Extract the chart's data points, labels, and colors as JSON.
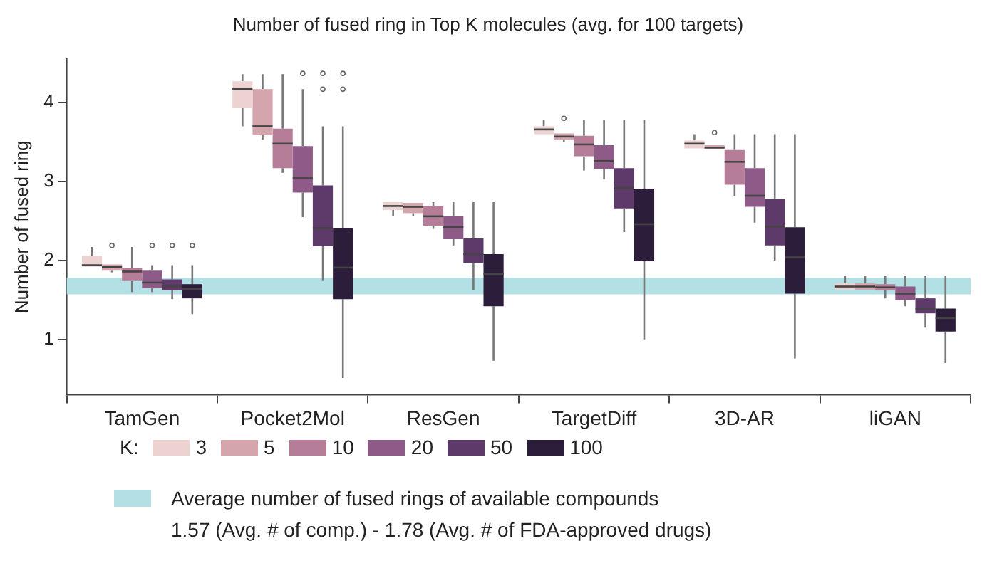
{
  "chart_data": {
    "type": "box",
    "title": "Number of fused ring in Top K molecules (avg. for 100 targets)",
    "ylabel": "Number of fused ring",
    "legend_title": "K:",
    "legend": "bottom",
    "grid": false,
    "categories": [
      "TamGen",
      "Pocket2Mol",
      "ResGen",
      "TargetDiff",
      "3D-AR",
      "liGAN"
    ],
    "ylim": [
      0.3,
      4.55
    ],
    "yticks": [
      1,
      2,
      3,
      4
    ],
    "bands": [
      {
        "axis": "y",
        "from": 1.57,
        "to": 1.78,
        "label": "Average number of fused rings of available compounds",
        "color": "#b2e0e5"
      }
    ],
    "annotations": [
      "1.57 (Avg. # of comp.) - 1.78 (Avg. # of FDA-approved drugs)"
    ],
    "series": [
      {
        "name": "3",
        "color": "#ecd3d1",
        "boxes": [
          {
            "low": 1.92,
            "q1": 1.92,
            "median": 1.94,
            "q3": 2.06,
            "high": 2.17
          },
          {
            "low": 3.7,
            "q1": 3.93,
            "median": 4.17,
            "q3": 4.27,
            "high": 4.36
          },
          {
            "low": 2.56,
            "q1": 2.64,
            "median": 2.69,
            "q3": 2.74,
            "high": 2.74
          },
          {
            "low": 3.6,
            "q1": 3.6,
            "median": 3.66,
            "q3": 3.7,
            "high": 3.78
          },
          {
            "low": 3.42,
            "q1": 3.42,
            "median": 3.48,
            "q3": 3.52,
            "high": 3.6
          },
          {
            "low": 1.63,
            "q1": 1.63,
            "median": 1.67,
            "q3": 1.71,
            "high": 1.8
          }
        ]
      },
      {
        "name": "5",
        "color": "#d4a5ad",
        "boxes": [
          {
            "low": 1.85,
            "q1": 1.87,
            "median": 1.92,
            "q3": 1.95,
            "high": 1.95,
            "outliers": [
              2.19
            ]
          },
          {
            "low": 3.53,
            "q1": 3.59,
            "median": 3.7,
            "q3": 4.17,
            "high": 4.36
          },
          {
            "low": 2.56,
            "q1": 2.6,
            "median": 2.68,
            "q3": 2.73,
            "high": 2.73
          },
          {
            "low": 3.5,
            "q1": 3.53,
            "median": 3.57,
            "q3": 3.61,
            "high": 3.61,
            "outliers": [
              3.8
            ]
          },
          {
            "low": 3.41,
            "q1": 3.41,
            "median": 3.43,
            "q3": 3.46,
            "high": 3.46,
            "outliers": [
              3.62
            ]
          },
          {
            "low": 1.63,
            "q1": 1.63,
            "median": 1.67,
            "q3": 1.71,
            "high": 1.8
          }
        ]
      },
      {
        "name": "10",
        "color": "#b67d99",
        "boxes": [
          {
            "low": 1.6,
            "q1": 1.74,
            "median": 1.86,
            "q3": 1.91,
            "high": 2.17
          },
          {
            "low": 3.11,
            "q1": 3.17,
            "median": 3.48,
            "q3": 3.67,
            "high": 4.36
          },
          {
            "low": 2.4,
            "q1": 2.44,
            "median": 2.56,
            "q3": 2.69,
            "high": 2.74
          },
          {
            "low": 3.14,
            "q1": 3.32,
            "median": 3.47,
            "q3": 3.58,
            "high": 3.78
          },
          {
            "low": 2.81,
            "q1": 2.96,
            "median": 3.25,
            "q3": 3.4,
            "high": 3.6
          },
          {
            "low": 1.52,
            "q1": 1.62,
            "median": 1.66,
            "q3": 1.7,
            "high": 1.8
          }
        ]
      },
      {
        "name": "20",
        "color": "#8e5a87",
        "boxes": [
          {
            "low": 1.6,
            "q1": 1.65,
            "median": 1.72,
            "q3": 1.87,
            "high": 1.94,
            "outliers": [
              2.19
            ]
          },
          {
            "low": 2.55,
            "q1": 2.86,
            "median": 3.05,
            "q3": 3.45,
            "high": 4.17,
            "outliers": [
              4.37
            ]
          },
          {
            "low": 2.19,
            "q1": 2.27,
            "median": 2.42,
            "q3": 2.56,
            "high": 2.74
          },
          {
            "low": 3.03,
            "q1": 3.16,
            "median": 3.26,
            "q3": 3.46,
            "high": 3.78
          },
          {
            "low": 2.48,
            "q1": 2.68,
            "median": 2.82,
            "q3": 3.17,
            "high": 3.6
          },
          {
            "low": 1.42,
            "q1": 1.5,
            "median": 1.58,
            "q3": 1.67,
            "high": 1.8
          }
        ]
      },
      {
        "name": "50",
        "color": "#5e3a6a",
        "boxes": [
          {
            "low": 1.51,
            "q1": 1.62,
            "median": 1.67,
            "q3": 1.76,
            "high": 1.94,
            "outliers": [
              2.19
            ]
          },
          {
            "low": 1.74,
            "q1": 2.18,
            "median": 2.41,
            "q3": 2.95,
            "high": 3.7,
            "outliers": [
              4.17,
              4.37
            ]
          },
          {
            "low": 1.62,
            "q1": 1.97,
            "median": 2.08,
            "q3": 2.28,
            "high": 2.74
          },
          {
            "low": 2.36,
            "q1": 2.66,
            "median": 2.92,
            "q3": 3.17,
            "high": 3.78
          },
          {
            "low": 2.0,
            "q1": 2.19,
            "median": 2.43,
            "q3": 2.78,
            "high": 3.6
          },
          {
            "low": 1.15,
            "q1": 1.33,
            "median": 1.39,
            "q3": 1.52,
            "high": 1.8
          }
        ]
      },
      {
        "name": "100",
        "color": "#2c1d3b",
        "boxes": [
          {
            "low": 1.32,
            "q1": 1.52,
            "median": 1.64,
            "q3": 1.7,
            "high": 1.94,
            "outliers": [
              2.19
            ]
          },
          {
            "low": 0.51,
            "q1": 1.51,
            "median": 1.91,
            "q3": 2.41,
            "high": 3.7,
            "outliers": [
              4.17,
              4.37
            ]
          },
          {
            "low": 0.73,
            "q1": 1.42,
            "median": 1.83,
            "q3": 2.08,
            "high": 2.74
          },
          {
            "low": 1.0,
            "q1": 1.99,
            "median": 2.46,
            "q3": 2.91,
            "high": 3.78
          },
          {
            "low": 0.76,
            "q1": 1.58,
            "median": 2.04,
            "q3": 2.42,
            "high": 3.6
          },
          {
            "low": 0.7,
            "q1": 1.1,
            "median": 1.27,
            "q3": 1.39,
            "high": 1.8
          }
        ]
      }
    ]
  }
}
